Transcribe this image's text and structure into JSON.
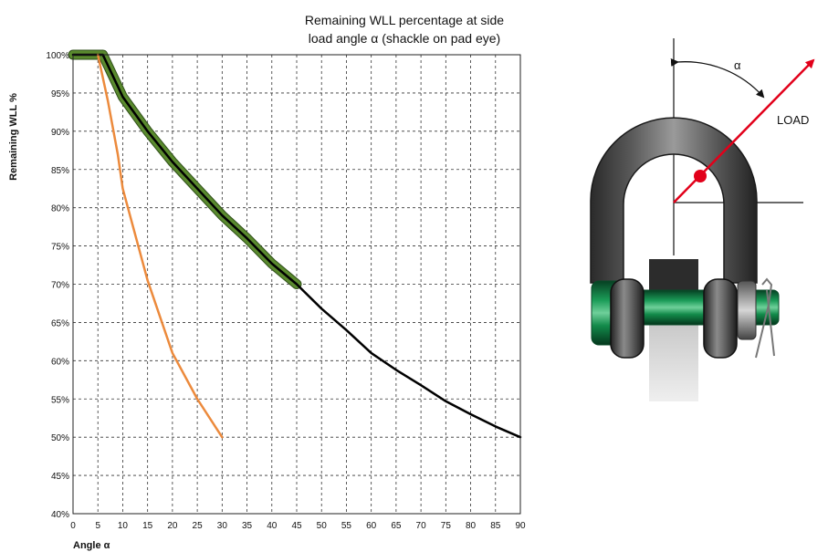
{
  "chart_data": {
    "type": "line",
    "title_lines": [
      "Remaining WLL percentage at side",
      "load angle α (shackle on pad eye)"
    ],
    "xlabel": "Angle α",
    "ylabel": "Remaining WLL %",
    "xlim": [
      0,
      90
    ],
    "ylim": [
      40,
      100
    ],
    "grid": true,
    "x_ticks": [
      "0",
      "5",
      "10",
      "15",
      "20",
      "25",
      "30",
      "35",
      "40",
      "45",
      "50",
      "55",
      "60",
      "65",
      "70",
      "75",
      "80",
      "85",
      "90"
    ],
    "y_ticks": [
      "40%",
      "45%",
      "50%",
      "55%",
      "60%",
      "65%",
      "70%",
      "75%",
      "80%",
      "85%",
      "90%",
      "95%",
      "100%"
    ],
    "series": [
      {
        "color": "#5a8a2e",
        "style": "thick-band",
        "x": [
          0,
          5,
          6,
          10,
          15,
          20,
          25,
          30,
          35,
          40,
          45
        ],
        "y": [
          100,
          100,
          100,
          94.5,
          90,
          86,
          82.5,
          79,
          76,
          72.7,
          70
        ]
      },
      {
        "color": "#000000",
        "style": "line",
        "x": [
          0,
          5,
          6,
          10,
          15,
          20,
          25,
          30,
          35,
          40,
          45,
          50,
          55,
          60,
          65,
          70,
          75,
          80,
          85,
          90
        ],
        "y": [
          100,
          100,
          100,
          94.5,
          90,
          86,
          82.5,
          79,
          76,
          72.7,
          70,
          66.8,
          64,
          61,
          58.8,
          56.8,
          54.7,
          53,
          51.4,
          50
        ]
      },
      {
        "color": "#ec8a3c",
        "style": "line",
        "x": [
          5,
          7,
          9,
          10,
          15,
          20,
          25,
          30
        ],
        "y": [
          100,
          94,
          87,
          82.5,
          70.5,
          61,
          55,
          50
        ]
      }
    ]
  },
  "diagram": {
    "angle_label": "α",
    "load_label": "LOAD",
    "colors": {
      "arrow": "#e2001a",
      "pin": "#0e8a4a",
      "shackle": "#4a4a4a"
    }
  }
}
